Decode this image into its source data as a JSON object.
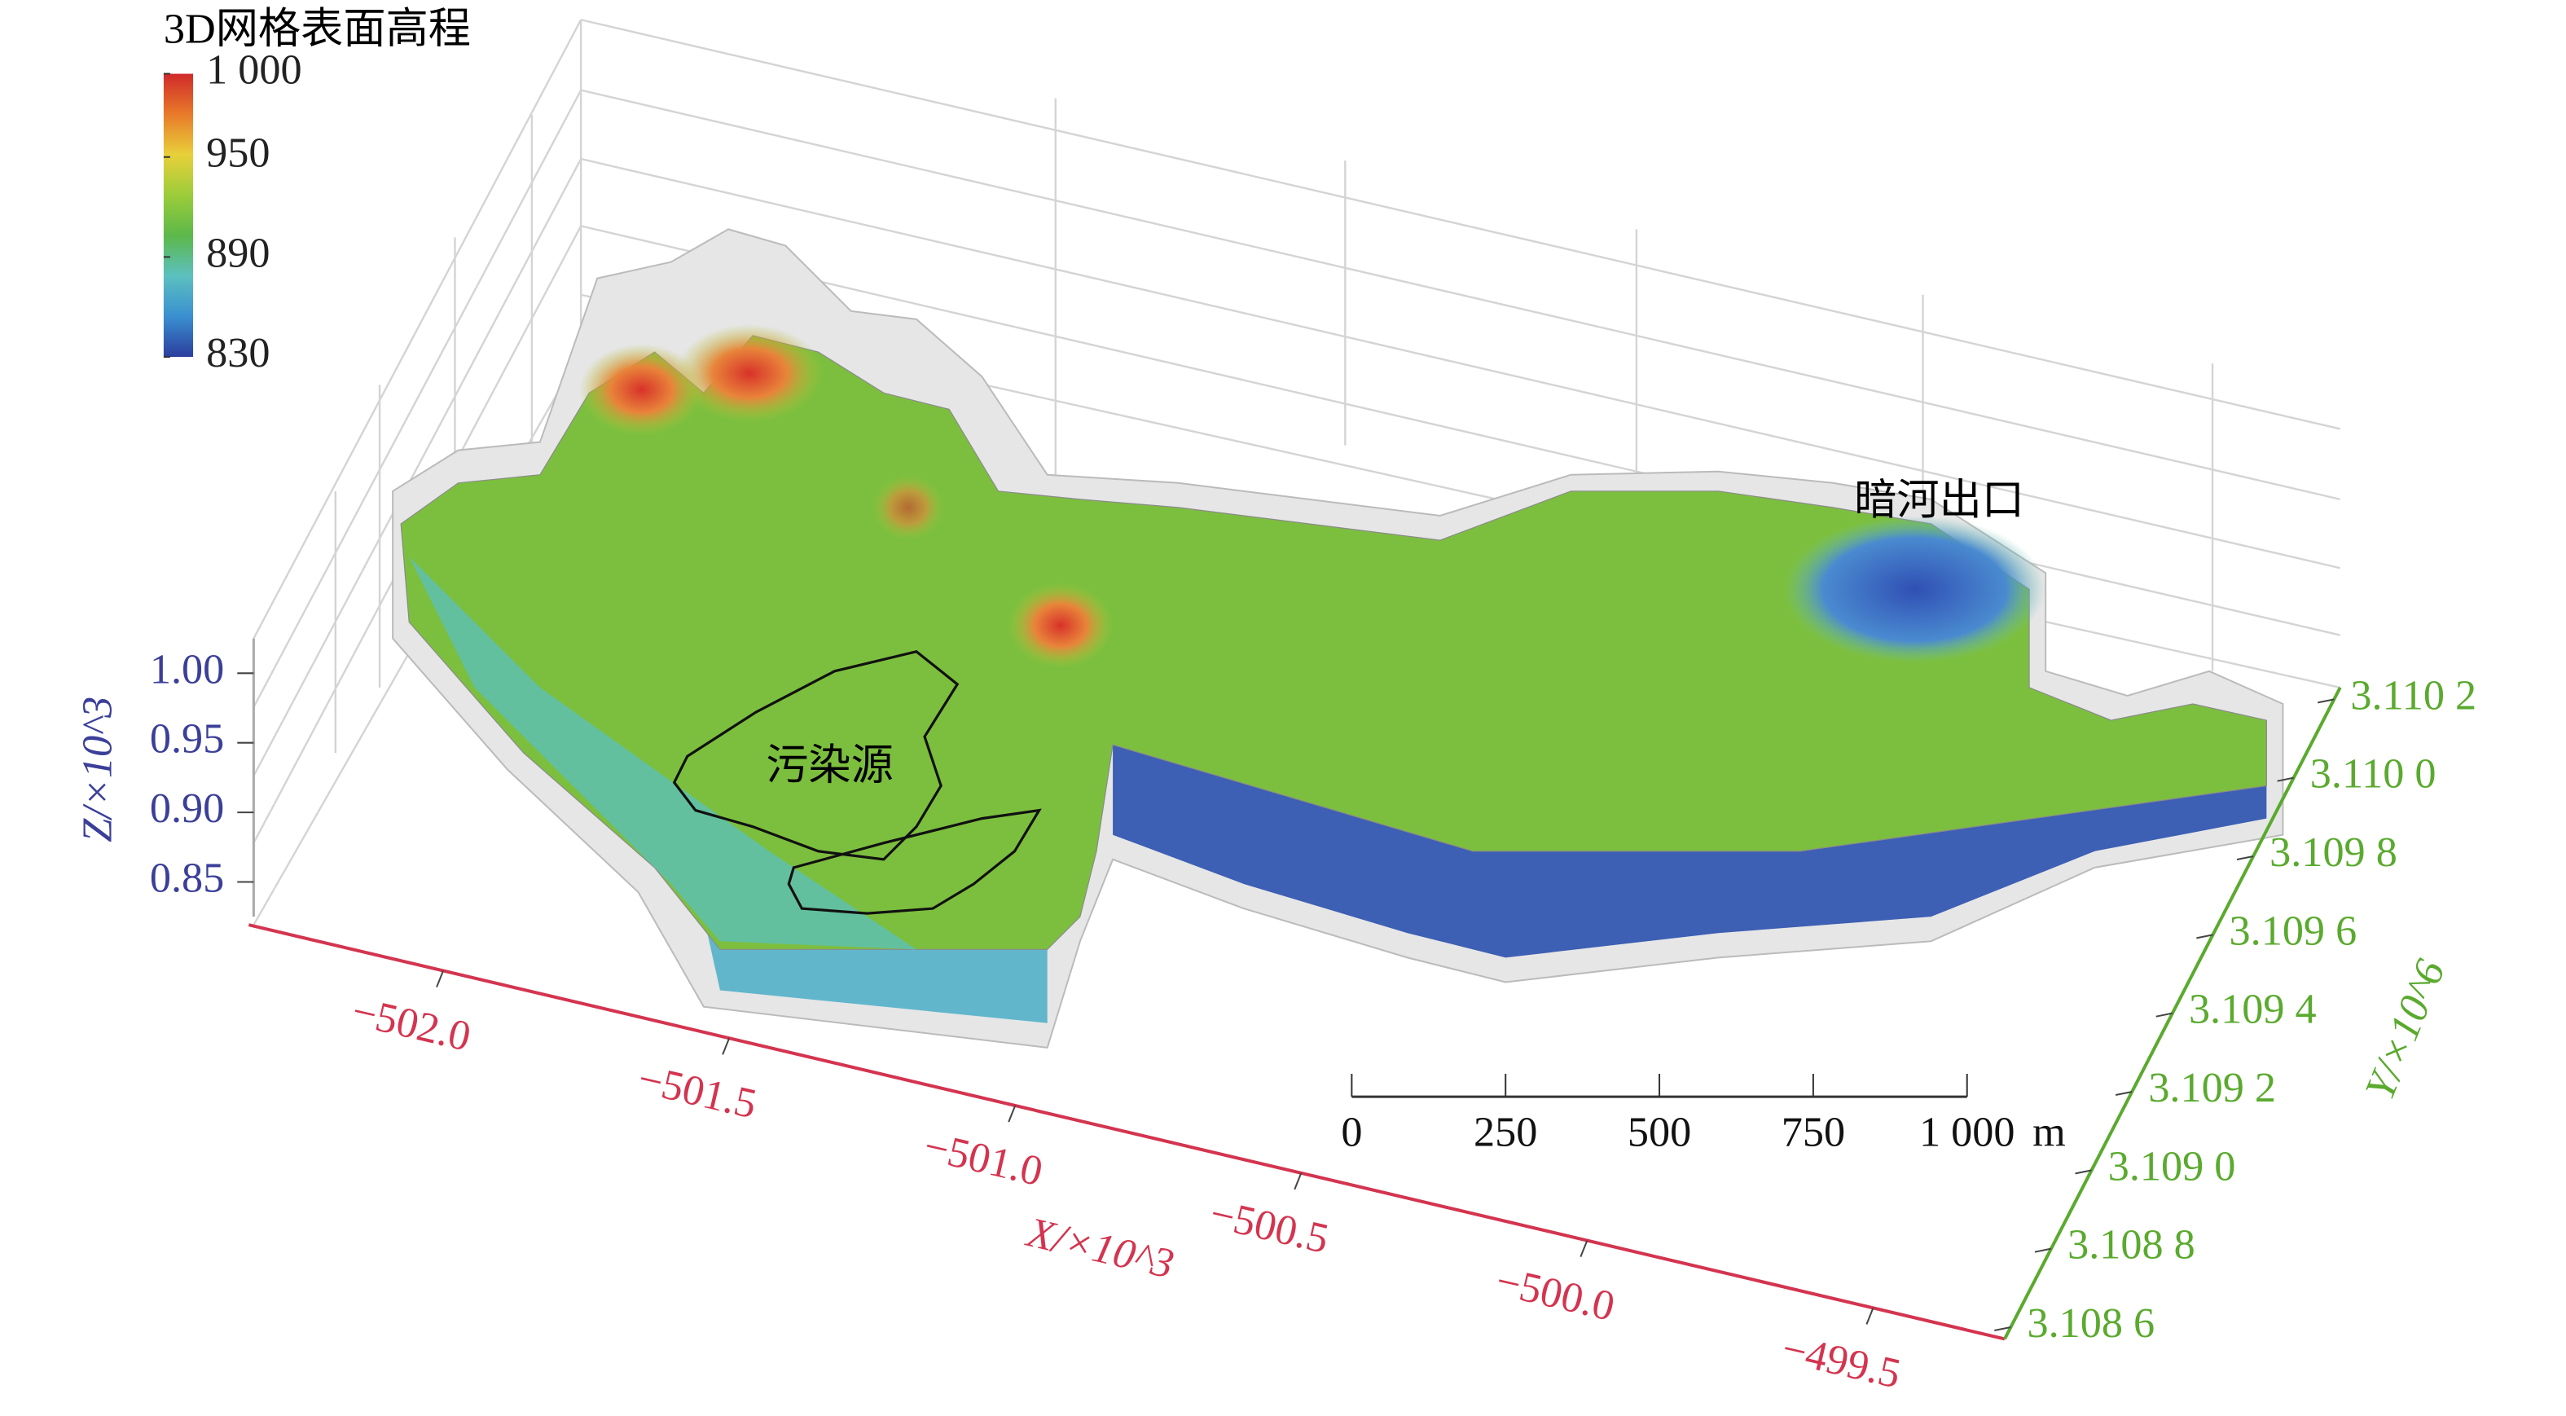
{
  "chart_data": {
    "type": "surface3d",
    "colorbar": {
      "title": "3D网格表面高程",
      "lim": [
        830,
        1000
      ],
      "ticks": [
        {
          "value": 1000,
          "label": "1 000"
        },
        950,
        890,
        830
      ],
      "colormap": [
        "#2b3d9e",
        "#3a8fd0",
        "#5cc0c0",
        "#5cb84a",
        "#9ccc3a",
        "#e8d03a",
        "#e87a2a",
        "#d02a2a"
      ]
    },
    "xlabel": "X/×10^3",
    "xlim": [
      -502.34,
      -499.27
    ],
    "xticks": [
      {
        "value": -502,
        "label": "−502.0"
      },
      {
        "value": -501.5,
        "label": "−501.5"
      },
      {
        "value": -501,
        "label": "−501.0"
      },
      {
        "value": -500.5,
        "label": "−500.5"
      },
      {
        "value": -500,
        "label": "−500.0"
      },
      {
        "value": -499.5,
        "label": "−499.5"
      }
    ],
    "ylabel": "Y/×10^6",
    "ylim": [
      3.10857,
      3.11023
    ],
    "yticks": [
      {
        "value": 3.1086,
        "label": "3.108 6"
      },
      {
        "value": 3.1088,
        "label": "3.108 8"
      },
      {
        "value": 3.109,
        "label": "3.109 0"
      },
      {
        "value": 3.1092,
        "label": "3.109 2"
      },
      {
        "value": 3.1094,
        "label": "3.109 4"
      },
      {
        "value": 3.1096,
        "label": "3.109 6"
      },
      {
        "value": 3.1098,
        "label": "3.109 8"
      },
      {
        "value": 3.11,
        "label": "3.110 0"
      },
      {
        "value": 3.1102,
        "label": "3.110 2"
      }
    ],
    "zlabel": "Z/×10^3",
    "zlim": [
      0.825,
      1.025
    ],
    "zticks": [
      0.85,
      {
        "value": 0.9,
        "label": "0.90"
      },
      0.95,
      {
        "value": 1,
        "label": "1.00"
      }
    ],
    "annotations": [
      "污染源",
      "暗河出口"
    ],
    "scale_bar": {
      "ticks": [
        0,
        250,
        500,
        750,
        {
          "value": 1000,
          "label": "1 000"
        }
      ],
      "unit": "m"
    },
    "axis_colors": {
      "x": "#d4344f",
      "y": "#5aaa2e",
      "z": "#3b3f99"
    }
  }
}
